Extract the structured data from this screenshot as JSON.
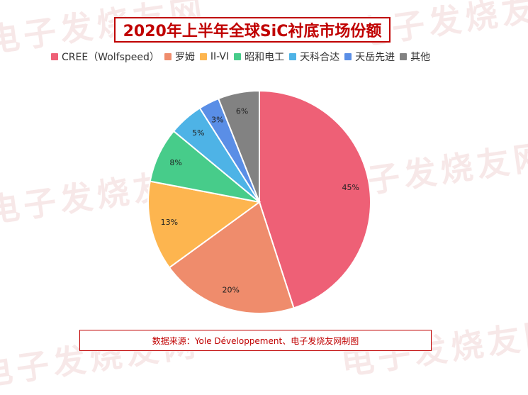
{
  "watermark": "电子发烧友网",
  "title": "2020年上半年全球SiC衬底市场份额",
  "source": "数据来源：Yole Développement、电子发烧友网制图",
  "chart_data": {
    "type": "pie",
    "series": [
      {
        "name": "CREE（Wolfspeed）",
        "value": 45,
        "label": "45%",
        "color": "#ee6076"
      },
      {
        "name": "罗姆",
        "value": 20,
        "label": "20%",
        "color": "#ef8c6c"
      },
      {
        "name": "II-VI",
        "value": 13,
        "label": "13%",
        "color": "#fdb54f"
      },
      {
        "name": "昭和电工",
        "value": 8,
        "label": "8%",
        "color": "#47cc8a"
      },
      {
        "name": "天科合达",
        "value": 5,
        "label": "5%",
        "color": "#4eb3e6"
      },
      {
        "name": "天岳先进",
        "value": 3,
        "label": "3%",
        "color": "#5a8ee6"
      },
      {
        "name": "其他",
        "value": 6,
        "label": "6%",
        "color": "#828282"
      }
    ],
    "legend_position": "top",
    "start_angle": "12 o'clock, clockwise"
  }
}
